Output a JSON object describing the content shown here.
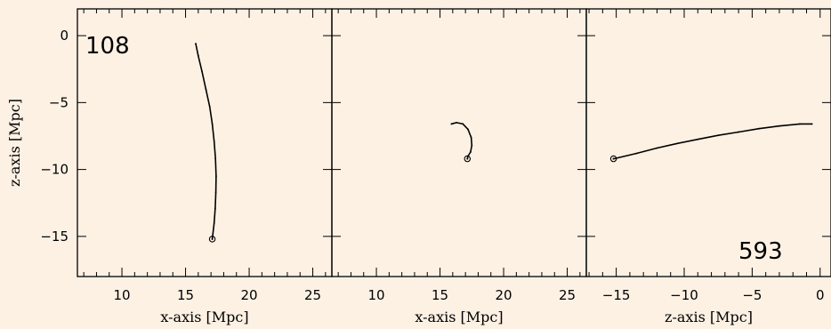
{
  "chart_data": [
    {
      "type": "line",
      "xlabel": "x-axis [Mpc]",
      "ylabel": "z-axis [Mpc]",
      "xlim": [
        6.5,
        26.5
      ],
      "ylim": [
        -18,
        2
      ],
      "xticks": [
        "10",
        "15",
        "20",
        "25"
      ],
      "yticks": [
        "0",
        "−5",
        "−10",
        "−15"
      ],
      "annotation": "108",
      "series": [
        {
          "x": [
            15.8,
            16.0,
            16.3,
            16.6,
            16.9,
            17.1,
            17.25,
            17.35,
            17.4,
            17.38,
            17.33,
            17.25,
            17.15,
            17.1
          ],
          "y": [
            -0.6,
            -1.5,
            -2.7,
            -4.0,
            -5.3,
            -6.6,
            -7.9,
            -9.2,
            -10.5,
            -11.7,
            -12.9,
            -14.0,
            -14.8,
            -15.2
          ]
        }
      ],
      "marker": {
        "x": 17.1,
        "y": -15.2
      }
    },
    {
      "type": "line",
      "xlabel": "x-axis [Mpc]",
      "ylabel": "",
      "xlim": [
        6.5,
        26.5
      ],
      "ylim": [
        -18,
        2
      ],
      "xticks": [
        "10",
        "15",
        "20",
        "25"
      ],
      "yticks": [],
      "annotation": "",
      "series": [
        {
          "x": [
            15.9,
            16.3,
            16.8,
            17.2,
            17.45,
            17.5,
            17.4,
            17.2,
            17.15
          ],
          "y": [
            -6.6,
            -6.5,
            -6.6,
            -7.0,
            -7.6,
            -8.2,
            -8.7,
            -9.0,
            -9.2
          ]
        }
      ],
      "marker": {
        "x": 17.15,
        "y": -9.2
      }
    },
    {
      "type": "line",
      "xlabel": "z-axis [Mpc]",
      "ylabel": "",
      "xlim": [
        -17.2,
        0.8
      ],
      "ylim": [
        -18,
        2
      ],
      "xticks": [
        "−15",
        "−10",
        "−5",
        "0"
      ],
      "yticks": [],
      "annotation": "593",
      "series": [
        {
          "x": [
            -0.6,
            -1.5,
            -3.0,
            -4.5,
            -6.0,
            -7.5,
            -9.0,
            -10.5,
            -12.0,
            -13.5,
            -15.2
          ],
          "y": [
            -6.6,
            -6.6,
            -6.75,
            -6.95,
            -7.2,
            -7.45,
            -7.75,
            -8.05,
            -8.4,
            -8.8,
            -9.2
          ]
        }
      ],
      "marker": {
        "x": -15.2,
        "y": -9.2
      }
    }
  ]
}
